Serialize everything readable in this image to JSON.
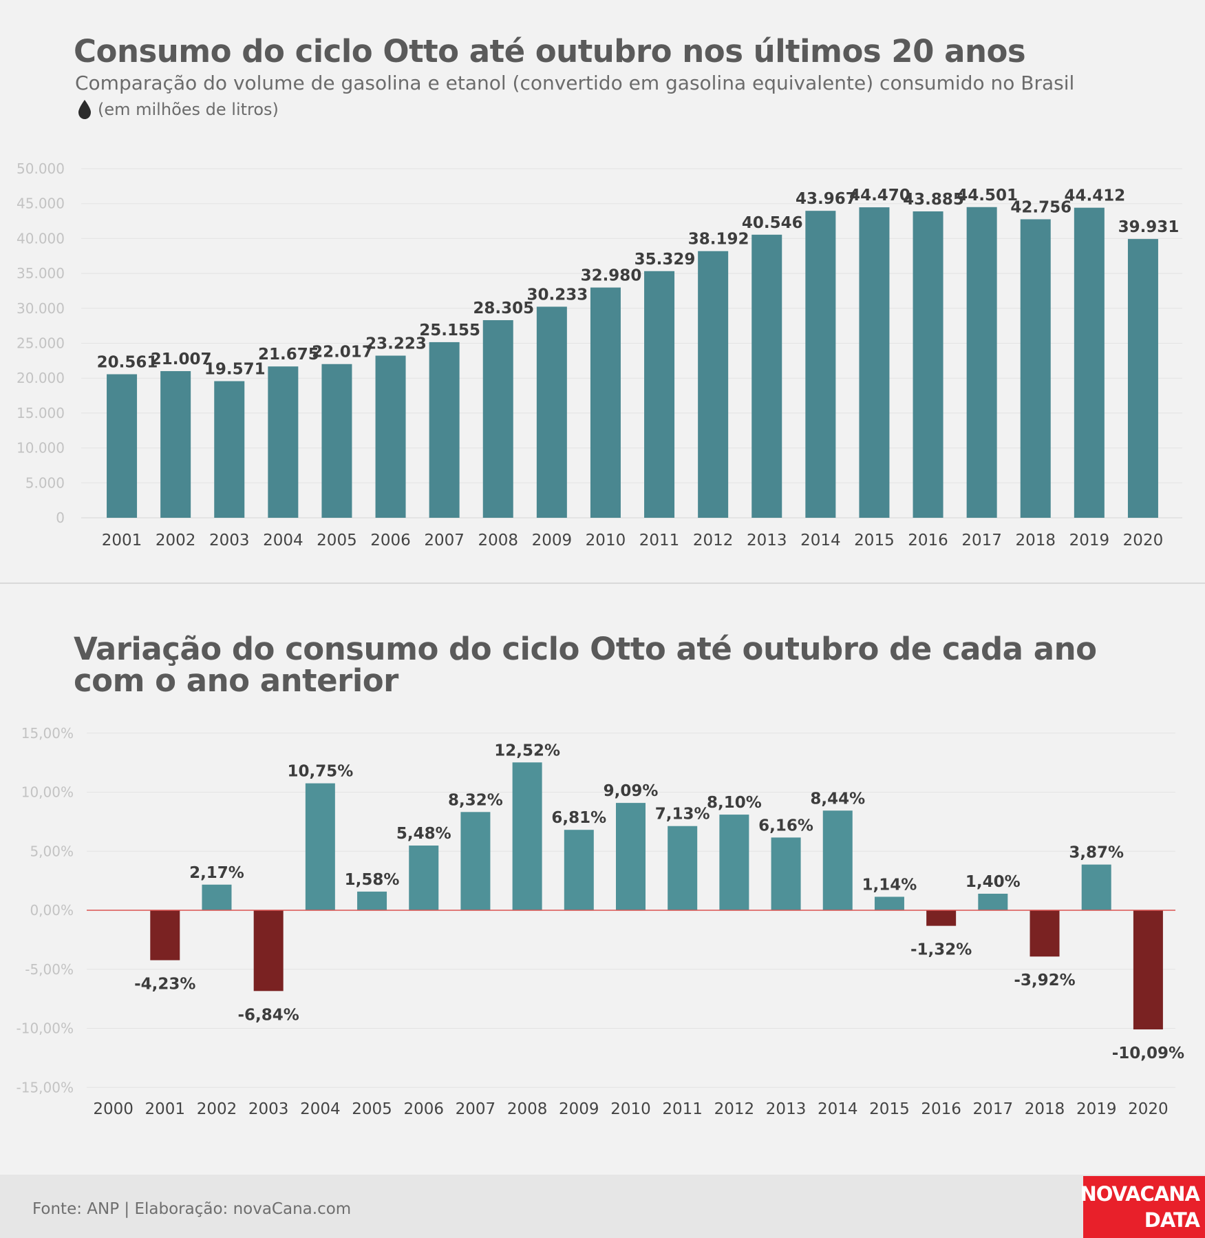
{
  "header": {
    "title": "Consumo do ciclo Otto até outubro nos últimos 20 anos",
    "subtitle": "Comparação do volume de gasolina e etanol (convertido em gasolina equivalente) consumido no Brasil",
    "unit_label": "(em milhões de litros)",
    "unit_icon": "drop-icon"
  },
  "second_title": "Variação do consumo do ciclo Otto até outubro de cada ano com o ano anterior",
  "footer": {
    "source": "Fonte: ANP | Elaboração: novaCana.com",
    "logo_line1": "NOVACANA",
    "logo_line2": "DATA"
  },
  "chart_data": [
    {
      "type": "bar",
      "title": "Consumo do ciclo Otto até outubro nos últimos 20 anos",
      "subtitle": "Comparação do volume de gasolina e etanol (convertido em gasolina equivalente) consumido no Brasil",
      "ylabel": "(em milhões de litros)",
      "categories": [
        "2001",
        "2002",
        "2003",
        "2004",
        "2005",
        "2006",
        "2007",
        "2008",
        "2009",
        "2010",
        "2011",
        "2012",
        "2013",
        "2014",
        "2015",
        "2016",
        "2017",
        "2018",
        "2019",
        "2020"
      ],
      "values": [
        20561,
        21007,
        19571,
        21675,
        22017,
        23223,
        25155,
        28305,
        30233,
        32980,
        35329,
        38192,
        40546,
        43967,
        44470,
        43885,
        44501,
        42756,
        44412,
        39931
      ],
      "value_labels": [
        "20.561",
        "21.007",
        "19.571",
        "21.675",
        "22.017",
        "23.223",
        "25.155",
        "28.305",
        "30.233",
        "32.980",
        "35.329",
        "38.192",
        "40.546",
        "43.967",
        "44.470",
        "43.885",
        "44.501",
        "42.756",
        "44.412",
        "39.931"
      ],
      "ylim": [
        0,
        50000
      ],
      "yticks": [
        0,
        5000,
        10000,
        15000,
        20000,
        25000,
        30000,
        35000,
        40000,
        45000,
        50000
      ],
      "ytick_labels": [
        "0",
        "5.000",
        "10.000",
        "15.000",
        "20.000",
        "25.000",
        "30.000",
        "35.000",
        "40.000",
        "45.000",
        "50.000"
      ],
      "grid": true,
      "colors": {
        "bar": "#4a8790"
      }
    },
    {
      "type": "bar",
      "title": "Variação do consumo do ciclo Otto até outubro de cada ano com o ano anterior",
      "categories": [
        "2000",
        "2001",
        "2002",
        "2003",
        "2004",
        "2005",
        "2006",
        "2007",
        "2008",
        "2009",
        "2010",
        "2011",
        "2012",
        "2013",
        "2014",
        "2015",
        "2016",
        "2017",
        "2018",
        "2019",
        "2020"
      ],
      "values": [
        null,
        -4.23,
        2.17,
        -6.84,
        10.75,
        1.58,
        5.48,
        8.32,
        12.52,
        6.81,
        9.09,
        7.13,
        8.1,
        6.16,
        8.44,
        1.14,
        -1.32,
        1.4,
        -3.92,
        3.87,
        -10.09
      ],
      "value_labels": [
        "",
        "-4,23%",
        "2,17%",
        "-6,84%",
        "10,75%",
        "1,58%",
        "5,48%",
        "8,32%",
        "12,52%",
        "6,81%",
        "9,09%",
        "7,13%",
        "8,10%",
        "6,16%",
        "8,44%",
        "1,14%",
        "-1,32%",
        "1,40%",
        "-3,92%",
        "3,87%",
        "-10,09%"
      ],
      "ylim": [
        -15,
        15
      ],
      "yticks": [
        -15,
        -10,
        -5,
        0,
        5,
        10,
        15
      ],
      "ytick_labels": [
        "-15,00%",
        "-10,00%",
        "-5,00%",
        "0,00%",
        "5,00%",
        "10,00%",
        "15,00%"
      ],
      "grid": true,
      "colors": {
        "positive": "#4f9198",
        "negative": "#7a2222",
        "zero_line": "#d9534f"
      }
    }
  ]
}
